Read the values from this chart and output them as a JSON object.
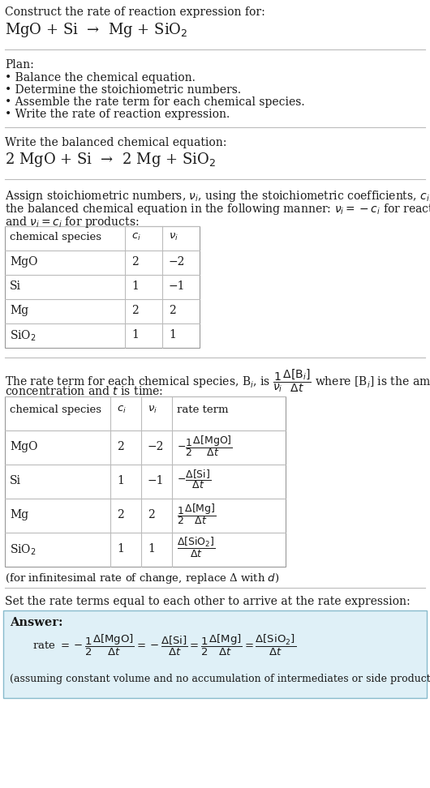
{
  "bg_color": "#ffffff",
  "text_color": "#1a1a1a",
  "title_line1": "Construct the rate of reaction expression for:",
  "reaction_unbalanced": "MgO + Si  →  Mg + SiO$_2$",
  "plan_header": "Plan:",
  "plan_bullets": [
    "• Balance the chemical equation.",
    "• Determine the stoichiometric numbers.",
    "• Assemble the rate term for each chemical species.",
    "• Write the rate of reaction expression."
  ],
  "balanced_header": "Write the balanced chemical equation:",
  "reaction_balanced": "2 MgO + Si  →  2 Mg + SiO$_2$",
  "stoich_header_line1": "Assign stoichiometric numbers, $\\nu_i$, using the stoichiometric coefficients, $c_i$, from",
  "stoich_header_line2": "the balanced chemical equation in the following manner: $\\nu_i = -c_i$ for reactants",
  "stoich_header_line3": "and $\\nu_i = c_i$ for products:",
  "table1_headers": [
    "chemical species",
    "$c_i$",
    "$\\nu_i$"
  ],
  "table1_rows": [
    [
      "MgO",
      "2",
      "−2"
    ],
    [
      "Si",
      "1",
      "−1"
    ],
    [
      "Mg",
      "2",
      "2"
    ],
    [
      "SiO$_2$",
      "1",
      "1"
    ]
  ],
  "rate_term_text": "The rate term for each chemical species, B$_i$, is $\\dfrac{1}{\\nu_i}\\dfrac{\\Delta[\\mathrm{B}_i]}{\\Delta t}$ where [B$_i$] is the amount",
  "rate_term_line2": "concentration and $t$ is time:",
  "table2_headers": [
    "chemical species",
    "$c_i$",
    "$\\nu_i$",
    "rate term"
  ],
  "table2_rows": [
    [
      "MgO",
      "2",
      "−2",
      "$-\\dfrac{1}{2}\\dfrac{\\Delta[\\mathrm{MgO}]}{\\Delta t}$"
    ],
    [
      "Si",
      "1",
      "−1",
      "$-\\dfrac{\\Delta[\\mathrm{Si}]}{\\Delta t}$"
    ],
    [
      "Mg",
      "2",
      "2",
      "$\\dfrac{1}{2}\\dfrac{\\Delta[\\mathrm{Mg}]}{\\Delta t}$"
    ],
    [
      "SiO$_2$",
      "1",
      "1",
      "$\\dfrac{\\Delta[\\mathrm{SiO_2}]}{\\Delta t}$"
    ]
  ],
  "infinitesimal_note": "(for infinitesimal rate of change, replace Δ with $d$)",
  "set_rate_header": "Set the rate terms equal to each other to arrive at the rate expression:",
  "answer_box_color": "#dff0f7",
  "answer_box_border": "#88bbcc",
  "answer_label": "Answer:",
  "rate_expression": "rate $= -\\dfrac{1}{2}\\dfrac{\\Delta[\\mathrm{MgO}]}{\\Delta t} = -\\dfrac{\\Delta[\\mathrm{Si}]}{\\Delta t} = \\dfrac{1}{2}\\dfrac{\\Delta[\\mathrm{Mg}]}{\\Delta t} = \\dfrac{\\Delta[\\mathrm{SiO_2}]}{\\Delta t}$",
  "assuming_note": "(assuming constant volume and no accumulation of intermediates or side products)"
}
